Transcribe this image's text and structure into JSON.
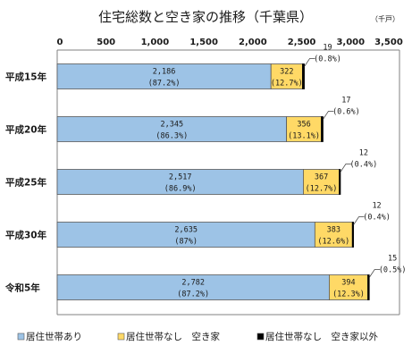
{
  "chart_data": {
    "type": "bar",
    "orientation": "horizontal",
    "stacked": true,
    "title": "住宅総数と空き家の推移（千葉県）",
    "unit": "（千戸）",
    "categories": [
      "平成15年",
      "平成20年",
      "平成25年",
      "平成30年",
      "令和5年"
    ],
    "xlim": [
      0,
      3500
    ],
    "xticks": [
      0,
      500,
      1000,
      1500,
      2000,
      2500,
      3000,
      3500
    ],
    "xtick_labels": [
      "0",
      "500",
      "1,000",
      "1,500",
      "2,000",
      "2,500",
      "3,000",
      "3,500"
    ],
    "grid": false,
    "legend_position": "bottom",
    "series": [
      {
        "name": "居住世帯あり",
        "color": "#9dc3e6",
        "values": [
          2186,
          2345,
          2517,
          2635,
          2782
        ],
        "labels": [
          [
            "2,186",
            "(87.2%)"
          ],
          [
            "2,345",
            "(86.3%)"
          ],
          [
            "2,517",
            "(86.9%)"
          ],
          [
            "2,635",
            "(87%)"
          ],
          [
            "2,782",
            "(87.2%)"
          ]
        ]
      },
      {
        "name": "居住世帯なし　空き家",
        "color": "#ffd966",
        "values": [
          322,
          356,
          367,
          383,
          394
        ],
        "labels": [
          [
            "322",
            "(12.7%)"
          ],
          [
            "356",
            "(13.1%)"
          ],
          [
            "367",
            "(12.7%)"
          ],
          [
            "383",
            "(12.6%)"
          ],
          [
            "394",
            "(12.3%)"
          ]
        ]
      },
      {
        "name": "居住世帯なし　空き家以外",
        "color": "#000000",
        "values": [
          19,
          17,
          12,
          12,
          15
        ],
        "labels": [
          [
            "19",
            "(0.8%)"
          ],
          [
            "17",
            "(0.6%)"
          ],
          [
            "12",
            "(0.4%)"
          ],
          [
            "12",
            "(0.4%)"
          ],
          [
            "15",
            "(0.5%)"
          ]
        ]
      }
    ]
  }
}
